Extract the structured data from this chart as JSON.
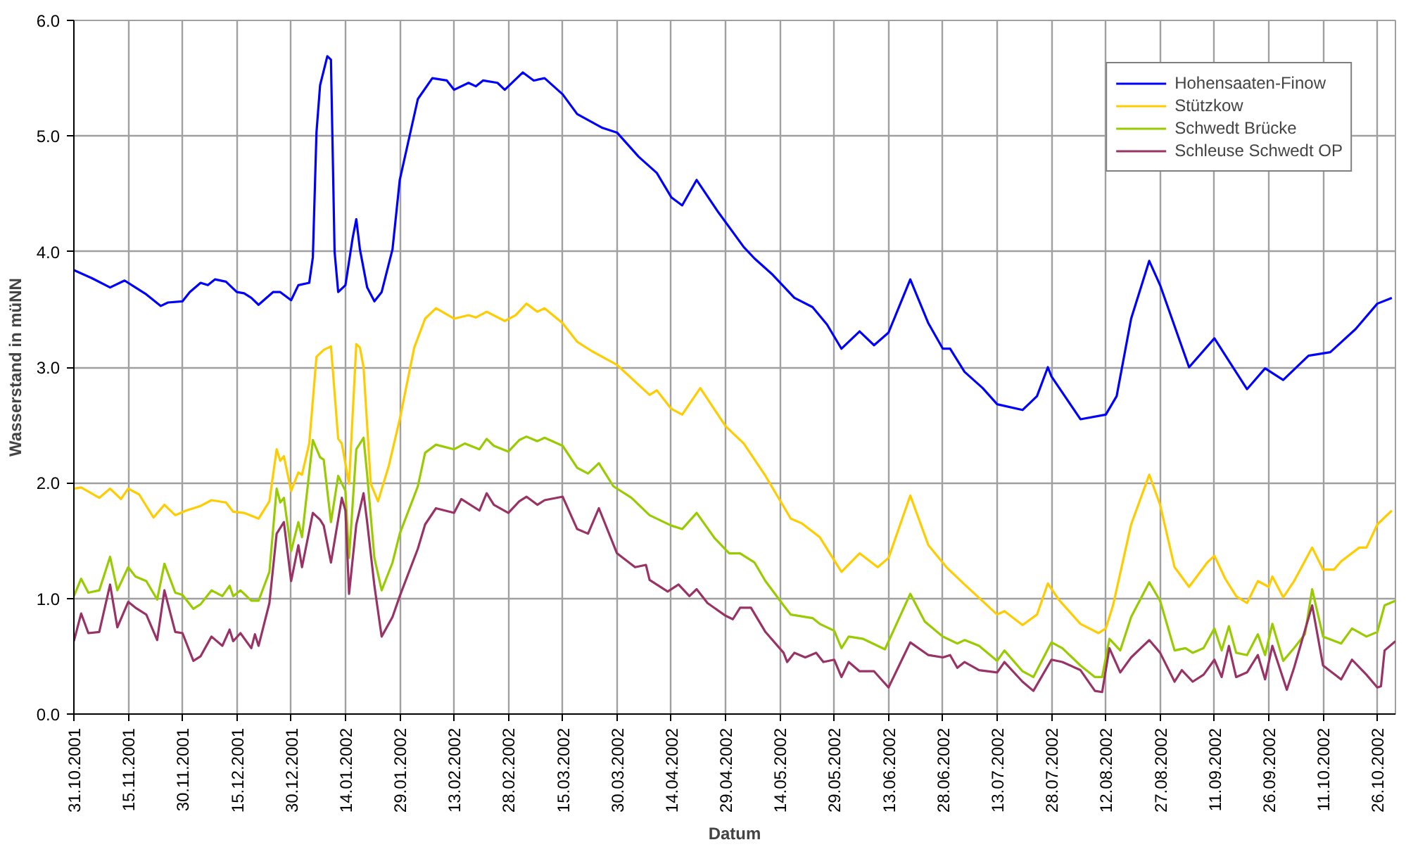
{
  "chart_data": {
    "type": "line",
    "xlabel": "Datum",
    "ylabel": "Wasserstand in müNN",
    "xlim": [
      "2001-10-31",
      "2002-10-31"
    ],
    "ylim": [
      0,
      6
    ],
    "xticks": [
      {
        "value": "2001-10-31",
        "label": "31.10.2001"
      },
      {
        "value": "2001-11-15",
        "label": "15.11.2001"
      },
      {
        "value": "2001-11-30",
        "label": "30.11.2001"
      },
      {
        "value": "2001-12-15",
        "label": "15.12.2001"
      },
      {
        "value": "2001-12-30",
        "label": "30.12.2001"
      },
      {
        "value": "2002-01-14",
        "label": "14.01.2002"
      },
      {
        "value": "2002-01-29",
        "label": "29.01.2002"
      },
      {
        "value": "2002-02-13",
        "label": "13.02.2002"
      },
      {
        "value": "2002-02-28",
        "label": "28.02.2002"
      },
      {
        "value": "2002-03-15",
        "label": "15.03.2002"
      },
      {
        "value": "2002-03-30",
        "label": "30.03.2002"
      },
      {
        "value": "2002-04-14",
        "label": "14.04.2002"
      },
      {
        "value": "2002-04-29",
        "label": "29.04.2002"
      },
      {
        "value": "2002-05-14",
        "label": "14.05.2002"
      },
      {
        "value": "2002-05-29",
        "label": "29.05.2002"
      },
      {
        "value": "2002-06-13",
        "label": "13.06.2002"
      },
      {
        "value": "2002-06-28",
        "label": "28.06.2002"
      },
      {
        "value": "2002-07-13",
        "label": "13.07.2002"
      },
      {
        "value": "2002-07-28",
        "label": "28.07.2002"
      },
      {
        "value": "2002-08-12",
        "label": "12.08.2002"
      },
      {
        "value": "2002-08-27",
        "label": "27.08.2002"
      },
      {
        "value": "2002-09-11",
        "label": "11.09.2002"
      },
      {
        "value": "2002-09-26",
        "label": "26.09.2002"
      },
      {
        "value": "2002-10-11",
        "label": "11.10.2002"
      },
      {
        "value": "2002-10-26",
        "label": "26.10.2002"
      }
    ],
    "yticks": [
      {
        "value": 0,
        "label": "0.0"
      },
      {
        "value": 1,
        "label": "1.0"
      },
      {
        "value": 2,
        "label": "2.0"
      },
      {
        "value": 3,
        "label": "3.0"
      },
      {
        "value": 4,
        "label": "4.0"
      },
      {
        "value": 5,
        "label": "5.0"
      },
      {
        "value": 6,
        "label": "6.0"
      }
    ],
    "grid": true,
    "legend": "top right",
    "line_style": "solid",
    "series": [
      {
        "name": "Hohensaaten-Finow",
        "color": "#0000ff",
        "x": [
          "2001-10-31",
          "2001-11-05",
          "2001-11-10",
          "2001-11-14",
          "2001-11-17",
          "2001-11-20",
          "2001-11-24",
          "2001-11-26",
          "2001-11-30",
          "2001-12-02",
          "2001-12-05",
          "2001-12-07",
          "2001-12-09",
          "2001-12-12",
          "2001-12-15",
          "2001-12-17",
          "2001-12-19",
          "2001-12-21",
          "2001-12-25",
          "2001-12-27",
          "2001-12-30",
          "2002-01-01",
          "2002-01-04",
          "2002-01-05",
          "2002-01-06",
          "2002-01-07",
          "2002-01-09",
          "2002-01-10",
          "2002-01-11",
          "2002-01-12",
          "2002-01-14",
          "2002-01-16",
          "2002-01-17",
          "2002-01-18",
          "2002-01-20",
          "2002-01-22",
          "2002-01-24",
          "2002-01-27",
          "2002-01-29",
          "2002-02-03",
          "2002-02-07",
          "2002-02-11",
          "2002-02-13",
          "2002-02-17",
          "2002-02-19",
          "2002-02-21",
          "2002-02-25",
          "2002-02-27",
          "2002-03-04",
          "2002-03-07",
          "2002-03-10",
          "2002-03-15",
          "2002-03-19",
          "2002-03-26",
          "2002-03-30",
          "2002-04-05",
          "2002-04-10",
          "2002-04-14",
          "2002-04-17",
          "2002-04-21",
          "2002-04-27",
          "2002-05-04",
          "2002-05-07",
          "2002-05-12",
          "2002-05-18",
          "2002-05-23",
          "2002-05-27",
          "2002-05-31",
          "2002-06-05",
          "2002-06-09",
          "2002-06-13",
          "2002-06-19",
          "2002-06-24",
          "2002-06-28",
          "2002-06-30",
          "2002-07-04",
          "2002-07-09",
          "2002-07-13",
          "2002-07-20",
          "2002-07-24",
          "2002-07-27",
          "2002-07-28",
          "2002-08-05",
          "2002-08-12",
          "2002-08-15",
          "2002-08-19",
          "2002-08-24",
          "2002-08-27",
          "2002-09-04",
          "2002-09-11",
          "2002-09-20",
          "2002-09-25",
          "2002-09-30",
          "2002-10-07",
          "2002-10-13",
          "2002-10-20",
          "2002-10-26",
          "2002-10-30"
        ],
        "values": [
          3.84,
          3.77,
          3.69,
          3.75,
          3.69,
          3.63,
          3.53,
          3.56,
          3.57,
          3.65,
          3.73,
          3.71,
          3.76,
          3.74,
          3.65,
          3.64,
          3.6,
          3.54,
          3.65,
          3.65,
          3.58,
          3.71,
          3.73,
          3.95,
          5.03,
          5.44,
          5.69,
          5.66,
          4.0,
          3.65,
          3.71,
          4.12,
          4.28,
          4.02,
          3.69,
          3.57,
          3.65,
          4.02,
          4.62,
          5.32,
          5.5,
          5.48,
          5.4,
          5.46,
          5.43,
          5.48,
          5.46,
          5.4,
          5.55,
          5.48,
          5.5,
          5.36,
          5.19,
          5.07,
          5.03,
          4.82,
          4.68,
          4.47,
          4.4,
          4.62,
          4.34,
          4.04,
          3.94,
          3.8,
          3.6,
          3.52,
          3.37,
          3.16,
          3.31,
          3.19,
          3.3,
          3.76,
          3.38,
          3.16,
          3.16,
          2.96,
          2.82,
          2.68,
          2.63,
          2.75,
          3.0,
          2.92,
          2.55,
          2.59,
          2.75,
          3.42,
          3.92,
          3.71,
          3.0,
          3.25,
          2.81,
          2.99,
          2.89,
          3.1,
          3.13,
          3.33,
          3.55,
          3.6
        ]
      },
      {
        "name": "Stützkow",
        "color": "#ffcc00",
        "x": [
          "2001-10-31",
          "2001-11-02",
          "2001-11-07",
          "2001-11-10",
          "2001-11-13",
          "2001-11-15",
          "2001-11-18",
          "2001-11-22",
          "2001-11-25",
          "2001-11-28",
          "2001-12-01",
          "2001-12-05",
          "2001-12-08",
          "2001-12-12",
          "2001-12-14",
          "2001-12-17",
          "2001-12-21",
          "2001-12-24",
          "2001-12-26",
          "2001-12-27",
          "2001-12-28",
          "2001-12-30",
          "2002-01-01",
          "2002-01-02",
          "2002-01-04",
          "2002-01-06",
          "2002-01-08",
          "2002-01-10",
          "2002-01-12",
          "2002-01-13",
          "2002-01-15",
          "2002-01-17",
          "2002-01-18",
          "2002-01-19",
          "2002-01-21",
          "2002-01-23",
          "2002-01-26",
          "2002-01-29",
          "2002-02-02",
          "2002-02-05",
          "2002-02-08",
          "2002-02-13",
          "2002-02-17",
          "2002-02-19",
          "2002-02-22",
          "2002-02-27",
          "2002-03-02",
          "2002-03-05",
          "2002-03-08",
          "2002-03-10",
          "2002-03-15",
          "2002-03-19",
          "2002-03-23",
          "2002-03-30",
          "2002-04-08",
          "2002-04-10",
          "2002-04-14",
          "2002-04-17",
          "2002-04-22",
          "2002-04-29",
          "2002-05-04",
          "2002-05-10",
          "2002-05-17",
          "2002-05-20",
          "2002-05-25",
          "2002-05-31",
          "2002-06-05",
          "2002-06-10",
          "2002-06-13",
          "2002-06-19",
          "2002-06-24",
          "2002-06-29",
          "2002-07-04",
          "2002-07-13",
          "2002-07-15",
          "2002-07-20",
          "2002-07-24",
          "2002-07-27",
          "2002-07-30",
          "2002-08-05",
          "2002-08-10",
          "2002-08-12",
          "2002-08-14",
          "2002-08-19",
          "2002-08-24",
          "2002-08-27",
          "2002-08-31",
          "2002-09-04",
          "2002-09-09",
          "2002-09-11",
          "2002-09-14",
          "2002-09-17",
          "2002-09-20",
          "2002-09-23",
          "2002-09-26",
          "2002-09-27",
          "2002-09-30",
          "2002-10-03",
          "2002-10-08",
          "2002-10-11",
          "2002-10-14",
          "2002-10-16",
          "2002-10-21",
          "2002-10-23",
          "2002-10-26",
          "2002-10-30"
        ],
        "values": [
          1.95,
          1.96,
          1.87,
          1.95,
          1.86,
          1.95,
          1.9,
          1.7,
          1.81,
          1.72,
          1.76,
          1.8,
          1.85,
          1.83,
          1.75,
          1.74,
          1.69,
          1.84,
          2.29,
          2.19,
          2.23,
          1.93,
          2.09,
          2.07,
          2.34,
          3.09,
          3.15,
          3.18,
          2.38,
          2.34,
          1.99,
          3.2,
          3.17,
          3.0,
          1.99,
          1.84,
          2.15,
          2.55,
          3.17,
          3.42,
          3.51,
          3.42,
          3.45,
          3.43,
          3.48,
          3.4,
          3.45,
          3.55,
          3.48,
          3.51,
          3.38,
          3.22,
          3.14,
          3.02,
          2.76,
          2.8,
          2.64,
          2.59,
          2.82,
          2.49,
          2.34,
          2.06,
          1.69,
          1.65,
          1.53,
          1.23,
          1.39,
          1.27,
          1.35,
          1.89,
          1.46,
          1.27,
          1.12,
          0.86,
          0.89,
          0.77,
          0.86,
          1.13,
          0.99,
          0.78,
          0.7,
          0.74,
          0.94,
          1.64,
          2.07,
          1.81,
          1.27,
          1.1,
          1.31,
          1.37,
          1.17,
          1.02,
          0.96,
          1.15,
          1.1,
          1.19,
          1.01,
          1.15,
          1.44,
          1.25,
          1.25,
          1.32,
          1.44,
          1.44,
          1.64,
          1.76
        ]
      },
      {
        "name": "Schwedt Brücke",
        "color": "#99cc00",
        "x": [
          "2001-10-31",
          "2001-11-02",
          "2001-11-04",
          "2001-11-07",
          "2001-11-10",
          "2001-11-12",
          "2001-11-15",
          "2001-11-17",
          "2001-11-20",
          "2001-11-23",
          "2001-11-25",
          "2001-11-28",
          "2001-11-30",
          "2001-12-03",
          "2001-12-05",
          "2001-12-08",
          "2001-12-11",
          "2001-12-13",
          "2001-12-14",
          "2001-12-16",
          "2001-12-19",
          "2001-12-21",
          "2001-12-24",
          "2001-12-26",
          "2001-12-27",
          "2001-12-28",
          "2001-12-30",
          "2002-01-01",
          "2002-01-02",
          "2002-01-05",
          "2002-01-07",
          "2002-01-08",
          "2002-01-10",
          "2002-01-12",
          "2002-01-14",
          "2002-01-15",
          "2002-01-17",
          "2002-01-19",
          "2002-01-20",
          "2002-01-22",
          "2002-01-24",
          "2002-01-27",
          "2002-01-29",
          "2002-02-03",
          "2002-02-05",
          "2002-02-08",
          "2002-02-13",
          "2002-02-16",
          "2002-02-20",
          "2002-02-22",
          "2002-02-24",
          "2002-02-28",
          "2002-03-03",
          "2002-03-05",
          "2002-03-08",
          "2002-03-10",
          "2002-03-15",
          "2002-03-19",
          "2002-03-22",
          "2002-03-25",
          "2002-03-29",
          "2002-04-03",
          "2002-04-08",
          "2002-04-14",
          "2002-04-17",
          "2002-04-21",
          "2002-04-26",
          "2002-04-30",
          "2002-05-03",
          "2002-05-07",
          "2002-05-10",
          "2002-05-15",
          "2002-05-17",
          "2002-05-23",
          "2002-05-25",
          "2002-05-29",
          "2002-05-31",
          "2002-06-02",
          "2002-06-06",
          "2002-06-12",
          "2002-06-19",
          "2002-06-23",
          "2002-06-28",
          "2002-07-02",
          "2002-07-04",
          "2002-07-08",
          "2002-07-13",
          "2002-07-15",
          "2002-07-20",
          "2002-07-23",
          "2002-07-28",
          "2002-07-31",
          "2002-08-05",
          "2002-08-09",
          "2002-08-11",
          "2002-08-13",
          "2002-08-16",
          "2002-08-19",
          "2002-08-24",
          "2002-08-27",
          "2002-08-31",
          "2002-09-03",
          "2002-09-05",
          "2002-09-08",
          "2002-09-11",
          "2002-09-13",
          "2002-09-15",
          "2002-09-17",
          "2002-09-20",
          "2002-09-23",
          "2002-09-25",
          "2002-09-27",
          "2002-09-30",
          "2002-10-03",
          "2002-10-06",
          "2002-10-08",
          "2002-10-11",
          "2002-10-16",
          "2002-10-19",
          "2002-10-23",
          "2002-10-26",
          "2002-10-28",
          "2002-10-31"
        ],
        "values": [
          1.02,
          1.17,
          1.05,
          1.07,
          1.36,
          1.07,
          1.27,
          1.19,
          1.15,
          0.99,
          1.3,
          1.05,
          1.03,
          0.91,
          0.95,
          1.07,
          1.02,
          1.11,
          1.02,
          1.07,
          0.98,
          0.98,
          1.23,
          1.95,
          1.83,
          1.87,
          1.41,
          1.66,
          1.53,
          2.37,
          2.22,
          2.2,
          1.66,
          2.06,
          1.93,
          1.35,
          2.29,
          2.39,
          2.07,
          1.35,
          1.07,
          1.31,
          1.56,
          1.97,
          2.26,
          2.33,
          2.29,
          2.34,
          2.29,
          2.38,
          2.32,
          2.27,
          2.37,
          2.4,
          2.36,
          2.39,
          2.32,
          2.13,
          2.08,
          2.17,
          1.97,
          1.87,
          1.72,
          1.63,
          1.6,
          1.74,
          1.52,
          1.39,
          1.39,
          1.31,
          1.15,
          0.94,
          0.86,
          0.83,
          0.78,
          0.72,
          0.57,
          0.67,
          0.65,
          0.56,
          1.04,
          0.8,
          0.67,
          0.61,
          0.64,
          0.59,
          0.46,
          0.55,
          0.37,
          0.32,
          0.62,
          0.57,
          0.42,
          0.32,
          0.32,
          0.65,
          0.55,
          0.84,
          1.14,
          0.98,
          0.55,
          0.57,
          0.53,
          0.57,
          0.74,
          0.55,
          0.76,
          0.53,
          0.51,
          0.69,
          0.51,
          0.78,
          0.46,
          0.57,
          0.69,
          1.08,
          0.67,
          0.61,
          0.74,
          0.67,
          0.71,
          0.94,
          0.98
        ]
      },
      {
        "name": "Schleuse Schwedt OP",
        "color": "#993366",
        "x": [
          "2001-10-31",
          "2001-11-02",
          "2001-11-04",
          "2001-11-07",
          "2001-11-10",
          "2001-11-12",
          "2001-11-15",
          "2001-11-17",
          "2001-11-20",
          "2001-11-23",
          "2001-11-25",
          "2001-11-28",
          "2001-11-30",
          "2001-12-03",
          "2001-12-05",
          "2001-12-08",
          "2001-12-11",
          "2001-12-13",
          "2001-12-14",
          "2001-12-16",
          "2001-12-19",
          "2001-12-20",
          "2001-12-21",
          "2001-12-24",
          "2001-12-26",
          "2001-12-28",
          "2001-12-30",
          "2002-01-01",
          "2002-01-02",
          "2002-01-05",
          "2002-01-07",
          "2002-01-08",
          "2002-01-10",
          "2002-01-13",
          "2002-01-14",
          "2002-01-15",
          "2002-01-17",
          "2002-01-19",
          "2002-01-20",
          "2002-01-22",
          "2002-01-24",
          "2002-01-27",
          "2002-01-29",
          "2002-02-03",
          "2002-02-05",
          "2002-02-08",
          "2002-02-13",
          "2002-02-15",
          "2002-02-20",
          "2002-02-22",
          "2002-02-24",
          "2002-02-28",
          "2002-03-03",
          "2002-03-05",
          "2002-03-08",
          "2002-03-10",
          "2002-03-15",
          "2002-03-19",
          "2002-03-22",
          "2002-03-25",
          "2002-03-30",
          "2002-04-04",
          "2002-04-07",
          "2002-04-08",
          "2002-04-13",
          "2002-04-16",
          "2002-04-19",
          "2002-04-21",
          "2002-04-24",
          "2002-04-29",
          "2002-05-01",
          "2002-05-03",
          "2002-05-06",
          "2002-05-10",
          "2002-05-15",
          "2002-05-16",
          "2002-05-18",
          "2002-05-21",
          "2002-05-24",
          "2002-05-26",
          "2002-05-29",
          "2002-05-31",
          "2002-06-02",
          "2002-06-05",
          "2002-06-09",
          "2002-06-13",
          "2002-06-17",
          "2002-06-19",
          "2002-06-24",
          "2002-06-28",
          "2002-06-30",
          "2002-07-02",
          "2002-07-04",
          "2002-07-08",
          "2002-07-13",
          "2002-07-15",
          "2002-07-20",
          "2002-07-23",
          "2002-07-28",
          "2002-07-31",
          "2002-08-05",
          "2002-08-09",
          "2002-08-11",
          "2002-08-13",
          "2002-08-16",
          "2002-08-19",
          "2002-08-24",
          "2002-08-27",
          "2002-08-31",
          "2002-09-02",
          "2002-09-05",
          "2002-09-08",
          "2002-09-11",
          "2002-09-13",
          "2002-09-15",
          "2002-09-17",
          "2002-09-20",
          "2002-09-23",
          "2002-09-25",
          "2002-09-27",
          "2002-10-01",
          "2002-10-03",
          "2002-10-08",
          "2002-10-11",
          "2002-10-16",
          "2002-10-19",
          "2002-10-23",
          "2002-10-26",
          "2002-10-27",
          "2002-10-28",
          "2002-10-31"
        ],
        "values": [
          0.63,
          0.87,
          0.7,
          0.71,
          1.12,
          0.75,
          0.97,
          0.92,
          0.86,
          0.64,
          1.07,
          0.71,
          0.7,
          0.46,
          0.5,
          0.67,
          0.59,
          0.73,
          0.63,
          0.7,
          0.57,
          0.69,
          0.59,
          0.96,
          1.56,
          1.66,
          1.15,
          1.46,
          1.27,
          1.74,
          1.68,
          1.63,
          1.31,
          1.87,
          1.76,
          1.04,
          1.64,
          1.91,
          1.66,
          1.11,
          0.67,
          0.84,
          1.02,
          1.43,
          1.64,
          1.78,
          1.74,
          1.86,
          1.76,
          1.91,
          1.81,
          1.74,
          1.84,
          1.88,
          1.81,
          1.85,
          1.88,
          1.6,
          1.56,
          1.78,
          1.39,
          1.27,
          1.29,
          1.16,
          1.06,
          1.12,
          1.02,
          1.08,
          0.96,
          0.85,
          0.82,
          0.92,
          0.92,
          0.71,
          0.53,
          0.45,
          0.53,
          0.49,
          0.53,
          0.45,
          0.47,
          0.32,
          0.45,
          0.37,
          0.37,
          0.23,
          0.49,
          0.62,
          0.51,
          0.49,
          0.51,
          0.4,
          0.45,
          0.38,
          0.36,
          0.45,
          0.28,
          0.2,
          0.47,
          0.45,
          0.38,
          0.2,
          0.19,
          0.57,
          0.36,
          0.49,
          0.64,
          0.53,
          0.28,
          0.38,
          0.28,
          0.34,
          0.47,
          0.32,
          0.59,
          0.32,
          0.36,
          0.51,
          0.3,
          0.59,
          0.21,
          0.4,
          0.94,
          0.42,
          0.3,
          0.47,
          0.34,
          0.23,
          0.24,
          0.55,
          0.63
        ]
      }
    ]
  }
}
